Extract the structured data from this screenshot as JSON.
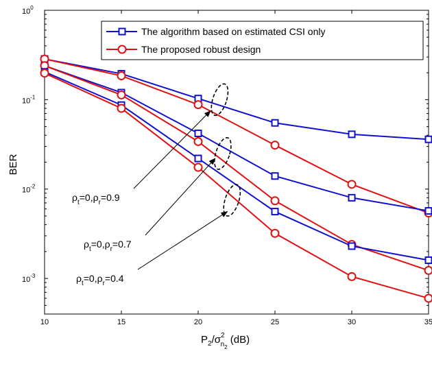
{
  "chart_data": {
    "type": "line",
    "xlabel": {
      "main": "P",
      "sub1": "2",
      "slash": "/σ",
      "sup": "2",
      "sub2": "n",
      "sub3": "2",
      "unit": " (dB)"
    },
    "ylabel": "BER",
    "xlim": [
      10,
      35
    ],
    "ylim": [
      0.0004,
      1
    ],
    "yscale": "log",
    "x_ticks": [
      "10",
      "15",
      "20",
      "25",
      "30",
      "35"
    ],
    "y_ticks": [
      {
        "base": "10",
        "exp": "0",
        "value": 1
      },
      {
        "base": "10",
        "exp": "-1",
        "value": 0.1
      },
      {
        "base": "10",
        "exp": "-2",
        "value": 0.01
      },
      {
        "base": "10",
        "exp": "-3",
        "value": 0.001
      }
    ],
    "x": [
      10,
      15,
      20,
      25,
      30,
      35
    ],
    "series": [
      {
        "name": "The algorithm based on estimated CSI only",
        "group": "0.9",
        "color": "#1010d0",
        "marker": "square",
        "values": [
          0.285,
          0.195,
          0.103,
          0.055,
          0.041,
          0.036
        ]
      },
      {
        "name": "The proposed robust design",
        "group": "0.9",
        "color": "#e01010",
        "marker": "circle",
        "values": [
          0.285,
          0.185,
          0.088,
          0.031,
          0.0113,
          0.0054
        ]
      },
      {
        "name": "The algorithm based on estimated CSI only",
        "group": "0.7",
        "color": "#1010d0",
        "marker": "square",
        "values": [
          0.24,
          0.12,
          0.042,
          0.014,
          0.008,
          0.0057
        ]
      },
      {
        "name": "The proposed robust design",
        "group": "0.7",
        "color": "#e01010",
        "marker": "circle",
        "values": [
          0.24,
          0.113,
          0.034,
          0.0074,
          0.0024,
          0.00123
        ]
      },
      {
        "name": "The algorithm based on estimated CSI only",
        "group": "0.4",
        "color": "#1010d0",
        "marker": "square",
        "values": [
          0.205,
          0.087,
          0.022,
          0.0056,
          0.0023,
          0.0016
        ]
      },
      {
        "name": "The proposed robust design",
        "group": "0.4",
        "color": "#e01010",
        "marker": "circle",
        "values": [
          0.198,
          0.08,
          0.0175,
          0.0032,
          0.00105,
          0.0006
        ]
      }
    ],
    "legend": {
      "placement": "top-right",
      "entries": [
        {
          "label": "The algorithm based on estimated CSI only",
          "color": "#1010d0",
          "marker": "square"
        },
        {
          "label": "The proposed robust design",
          "color": "#e01010",
          "marker": "circle"
        }
      ]
    },
    "annotations": [
      {
        "rho1": "ρ",
        "t": "t",
        "mid": "=0,ρ",
        "r": "r",
        "val": "=0.9",
        "target_x": 20.8,
        "target_y": 0.075
      },
      {
        "rho1": "ρ",
        "t": "t",
        "mid": "=0,ρ",
        "r": "r",
        "val": "=0.7",
        "target_x": 21.1,
        "target_y": 0.022
      },
      {
        "rho1": "ρ",
        "t": "t",
        "mid": "=0,ρ",
        "r": "r",
        "val": "=0.4",
        "target_x": 21.9,
        "target_y": 0.0056
      }
    ],
    "ellipses": [
      {
        "x": 21.4,
        "y": 0.1
      },
      {
        "x": 21.6,
        "y": 0.025
      },
      {
        "x": 22.2,
        "y": 0.0075
      }
    ],
    "grid": false
  }
}
